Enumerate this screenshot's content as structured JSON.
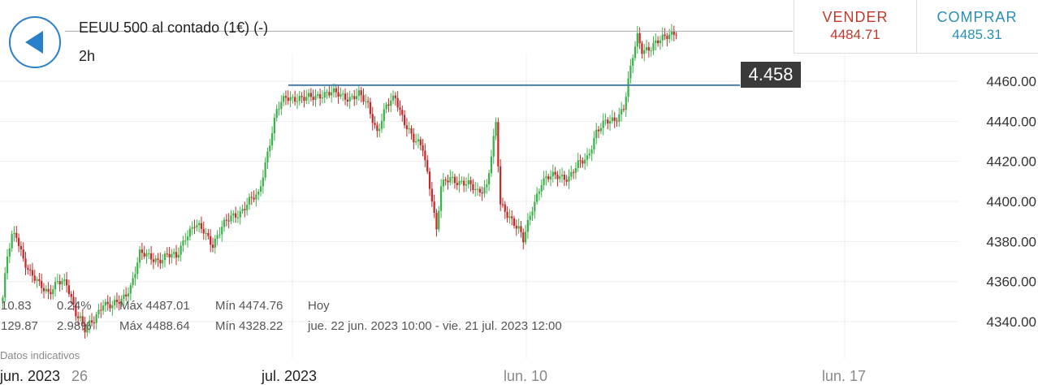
{
  "header": {
    "back_icon": "left-arrow-icon",
    "instrument": "EEUU 500 al contado (1€) (-)",
    "timeframe": "2h"
  },
  "trade": {
    "sell_label": "VENDER",
    "sell_price": "4484.71",
    "buy_label": "COMPRAR",
    "buy_price": "4485.31"
  },
  "level_label": "4.458",
  "stats": {
    "today": {
      "change": "10.83",
      "pct": "0.24%",
      "max": "Máx 4487.01",
      "min": "Mín 4474.76",
      "period": "Hoy"
    },
    "range": {
      "change": "129.87",
      "pct": "2.98%",
      "max": "Máx 4488.64",
      "min": "Mín 4328.22",
      "period": "jue. 22 jun. 2023 10:00 - vie. 21 jul. 2023 12:00"
    }
  },
  "disclaimer": "Datos indicativos",
  "colors": {
    "up": "#3cb34a",
    "down": "#c62828",
    "level_line": "#4a7fa8",
    "price_line": "#aaaaaa",
    "grid": "#eeeeee"
  },
  "chart_data": {
    "type": "candlestick",
    "ylim": [
      4325,
      4490
    ],
    "y_ticks": [
      "4460.00",
      "4440.00",
      "4420.00",
      "4400.00",
      "4380.00",
      "4360.00",
      "4340.00"
    ],
    "x_ticks": [
      "jun. 2023",
      "26",
      "jul. 2023",
      "lun. 10",
      "lun. 17"
    ],
    "horizontal_level": 4458,
    "current_price": 4485,
    "anchors": [
      [
        0,
        4352
      ],
      [
        2,
        4372
      ],
      [
        4,
        4382
      ],
      [
        6,
        4383
      ],
      [
        9,
        4372
      ],
      [
        12,
        4364
      ],
      [
        16,
        4358
      ],
      [
        20,
        4355
      ],
      [
        24,
        4360
      ],
      [
        28,
        4358
      ],
      [
        32,
        4345
      ],
      [
        34,
        4342
      ],
      [
        36,
        4336
      ],
      [
        40,
        4340
      ],
      [
        44,
        4350
      ],
      [
        48,
        4348
      ],
      [
        52,
        4350
      ],
      [
        56,
        4358
      ],
      [
        60,
        4374
      ],
      [
        64,
        4372
      ],
      [
        68,
        4371
      ],
      [
        72,
        4373
      ],
      [
        76,
        4372
      ],
      [
        80,
        4383
      ],
      [
        84,
        4388
      ],
      [
        88,
        4385
      ],
      [
        92,
        4379
      ],
      [
        96,
        4387
      ],
      [
        100,
        4392
      ],
      [
        104,
        4395
      ],
      [
        108,
        4400
      ],
      [
        112,
        4403
      ],
      [
        116,
        4425
      ],
      [
        120,
        4445
      ],
      [
        124,
        4452
      ],
      [
        128,
        4452
      ],
      [
        132,
        4451
      ],
      [
        136,
        4452
      ],
      [
        140,
        4454
      ],
      [
        144,
        4454
      ],
      [
        148,
        4453
      ],
      [
        152,
        4452
      ],
      [
        156,
        4453
      ],
      [
        160,
        4448
      ],
      [
        164,
        4435
      ],
      [
        168,
        4447
      ],
      [
        172,
        4452
      ],
      [
        176,
        4440
      ],
      [
        180,
        4430
      ],
      [
        184,
        4427
      ],
      [
        188,
        4402
      ],
      [
        190,
        4385
      ],
      [
        192,
        4407
      ],
      [
        196,
        4412
      ],
      [
        200,
        4410
      ],
      [
        204,
        4408
      ],
      [
        208,
        4405
      ],
      [
        212,
        4408
      ],
      [
        216,
        4438
      ],
      [
        218,
        4398
      ],
      [
        222,
        4393
      ],
      [
        226,
        4386
      ],
      [
        228,
        4380
      ],
      [
        232,
        4397
      ],
      [
        236,
        4410
      ],
      [
        240,
        4412
      ],
      [
        244,
        4413
      ],
      [
        248,
        4412
      ],
      [
        252,
        4418
      ],
      [
        256,
        4422
      ],
      [
        260,
        4435
      ],
      [
        264,
        4439
      ],
      [
        268,
        4441
      ],
      [
        272,
        4447
      ],
      [
        276,
        4472
      ],
      [
        278,
        4482
      ],
      [
        280,
        4476
      ],
      [
        284,
        4477
      ],
      [
        288,
        4480
      ],
      [
        292,
        4484
      ],
      [
        295,
        4485
      ]
    ]
  }
}
